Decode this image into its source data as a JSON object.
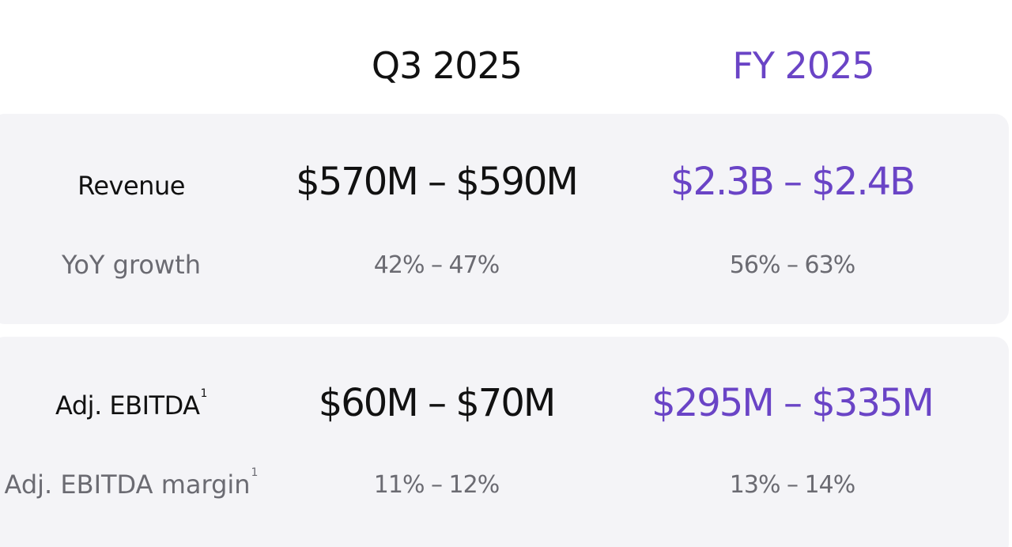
{
  "columns": {
    "q3": "Q3 2025",
    "fy": "FY 2025"
  },
  "rows": [
    {
      "label": "Revenue",
      "sub_label": "YoY growth",
      "q3_value": "$570M – $590M",
      "fy_value": "$2.3B – $2.4B",
      "q3_sub": "42% – 47%",
      "fy_sub": "56% – 63%"
    },
    {
      "label": "Adj. EBITDA",
      "label_footnote": "1",
      "sub_label": "Adj. EBITDA margin",
      "sub_label_footnote": "1",
      "q3_value": "$60M – $70M",
      "fy_value": "$295M – $335M",
      "q3_sub": "11% – 12%",
      "fy_sub": "13% – 14%"
    }
  ],
  "colors": {
    "accent": "#6a44c6",
    "primary_text": "#111111",
    "secondary_text": "#6b6b72",
    "card_bg": "#f4f4f7"
  }
}
